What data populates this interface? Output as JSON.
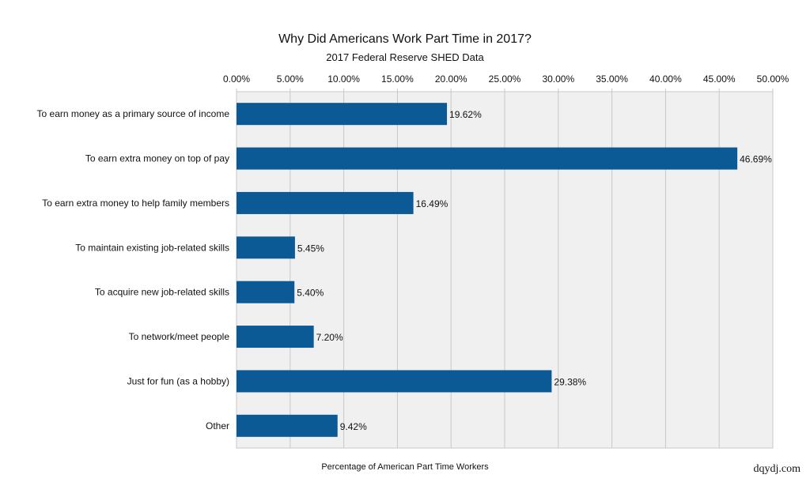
{
  "chart_data": {
    "type": "bar",
    "orientation": "horizontal",
    "title": "Why Did Americans Work Part Time in 2017?",
    "subtitle": "2017 Federal Reserve SHED Data",
    "xlabel": "Percentage of American Part Time Workers",
    "ylabel": "",
    "xlim": [
      0,
      50
    ],
    "x_axis_position": "top",
    "x_ticks": [
      "0.00%",
      "5.00%",
      "10.00%",
      "15.00%",
      "20.00%",
      "25.00%",
      "30.00%",
      "35.00%",
      "40.00%",
      "45.00%",
      "50.00%"
    ],
    "grid": true,
    "categories": [
      "To earn money as a primary source of income",
      "To earn extra money on top of pay",
      "To earn extra money to help family members",
      "To maintain existing job-related skills",
      "To acquire new job-related skills",
      "To network/meet people",
      "Just for fun (as a hobby)",
      "Other"
    ],
    "values": [
      19.62,
      46.69,
      16.49,
      5.45,
      5.4,
      7.2,
      29.38,
      9.42
    ],
    "data_labels": [
      "19.62%",
      "46.69%",
      "16.49%",
      "5.45%",
      "5.40%",
      "7.20%",
      "29.38%",
      "9.42%"
    ],
    "bar_color": "#0b5a96",
    "plot_background": "#f0f0f0",
    "grid_color": "#c8c8c8"
  },
  "watermark": "dqydj.com"
}
